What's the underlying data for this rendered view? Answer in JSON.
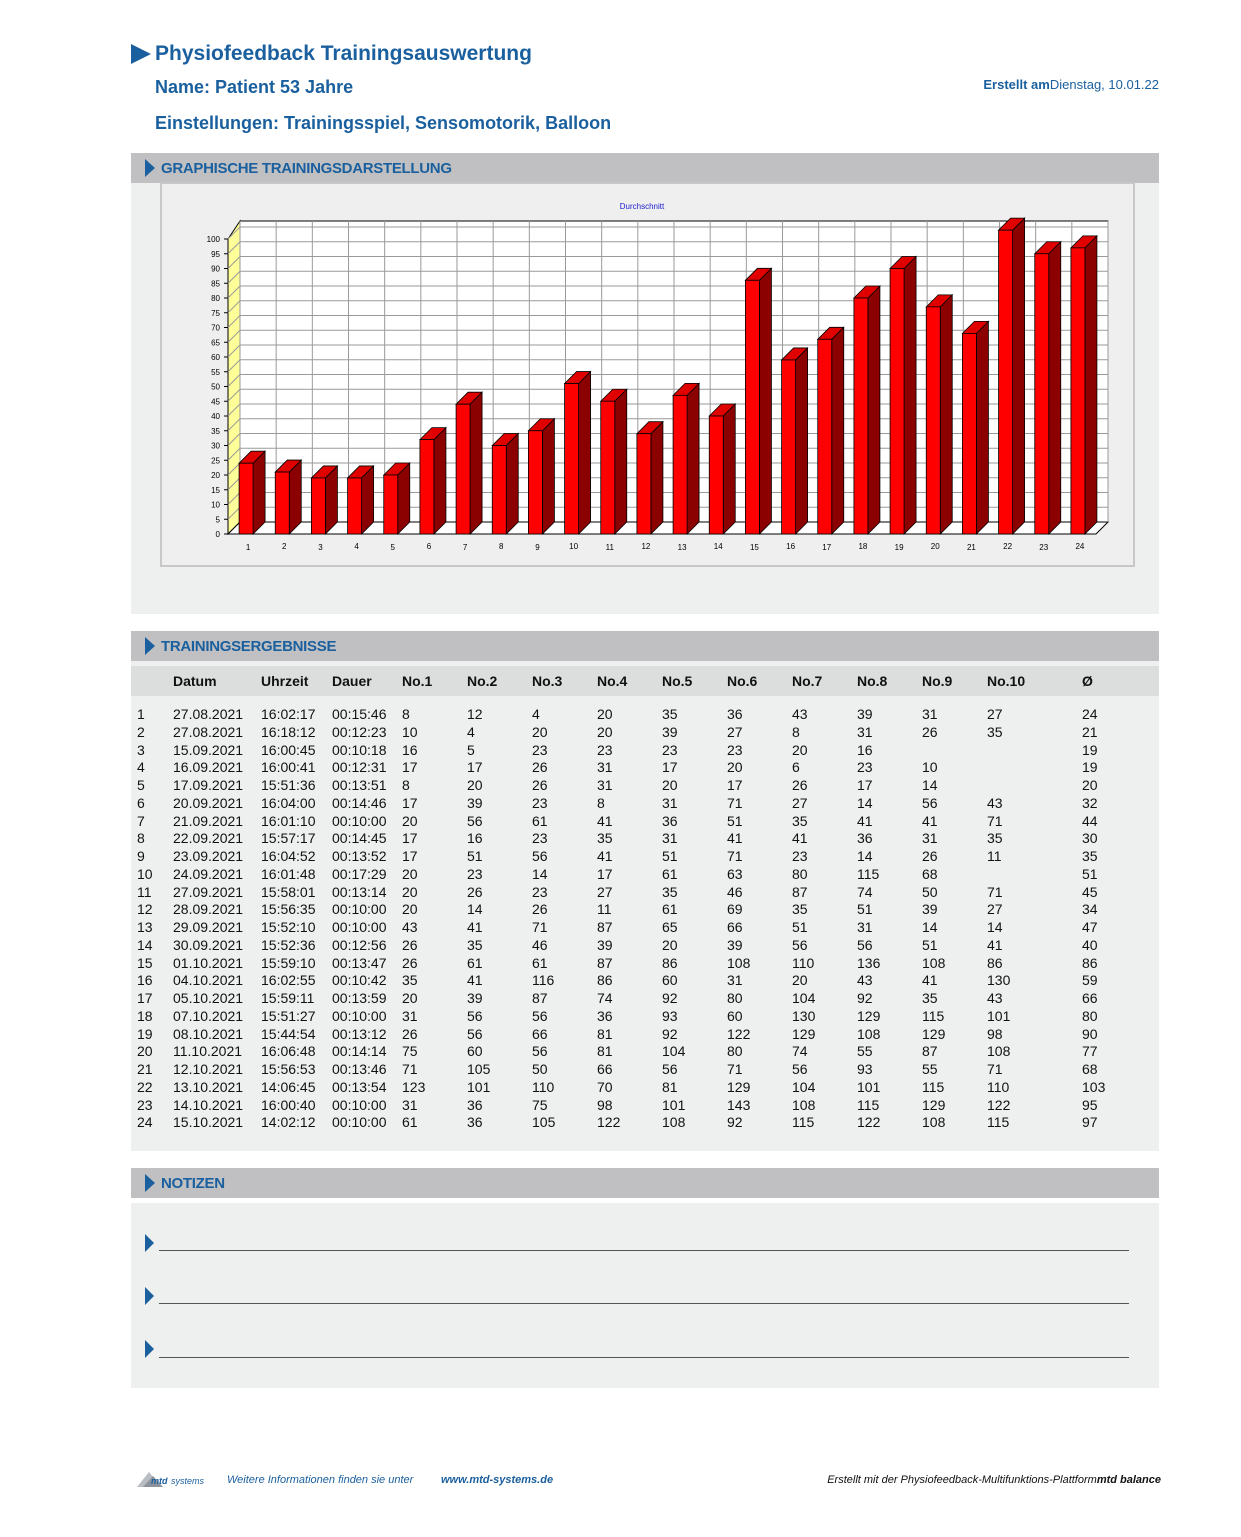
{
  "header": {
    "title": "Physiofeedback Trainingsauswertung",
    "patient": "Name: Patient 53 Jahre",
    "settings": "Einstellungen: Trainingsspiel, Sensomotorik, Balloon",
    "created_label": "Erstellt am",
    "created_date": "Dienstag, 10.01.22"
  },
  "sections": {
    "chart": "GRAPHISCHE TRAININGSDARSTELLUNG",
    "results": "TRAININGSERGEBNISSE",
    "notes": "NOTIZEN"
  },
  "chart_data": {
    "type": "bar",
    "title": "Durchschnitt",
    "categories": [
      "1",
      "2",
      "3",
      "4",
      "5",
      "6",
      "7",
      "8",
      "9",
      "10",
      "11",
      "12",
      "13",
      "14",
      "15",
      "16",
      "17",
      "18",
      "19",
      "20",
      "21",
      "22",
      "23",
      "24"
    ],
    "values": [
      24,
      21,
      19,
      19,
      20,
      32,
      44,
      30,
      35,
      51,
      45,
      34,
      47,
      40,
      86,
      59,
      66,
      80,
      90,
      77,
      68,
      103,
      95,
      97
    ],
    "ylim": [
      0,
      100
    ],
    "yticks": [
      "0",
      "5",
      "10",
      "15",
      "20",
      "25",
      "30",
      "35",
      "40",
      "45",
      "50",
      "55",
      "60",
      "65",
      "70",
      "75",
      "80",
      "85",
      "90",
      "95",
      "100"
    ],
    "colors": {
      "bar_front": "#ff0000",
      "bar_side": "#8b0000",
      "bar_top": "#e00000",
      "wall": "#ffff99"
    }
  },
  "table": {
    "columns": [
      "Datum",
      "Uhrzeit",
      "Dauer",
      "No.1",
      "No.2",
      "No.3",
      "No.4",
      "No.5",
      "No.6",
      "No.7",
      "No.8",
      "No.9",
      "No.10",
      "Ø"
    ],
    "rows": [
      [
        "1",
        "27.08.2021",
        "16:02:17",
        "00:15:46",
        "8",
        "12",
        "4",
        "20",
        "35",
        "36",
        "43",
        "39",
        "31",
        "27",
        "24"
      ],
      [
        "2",
        "27.08.2021",
        "16:18:12",
        "00:12:23",
        "10",
        "4",
        "20",
        "20",
        "39",
        "27",
        "8",
        "31",
        "26",
        "35",
        "21"
      ],
      [
        "3",
        "15.09.2021",
        "16:00:45",
        "00:10:18",
        "16",
        "5",
        "23",
        "23",
        "23",
        "23",
        "20",
        "16",
        "",
        "",
        "19"
      ],
      [
        "4",
        "16.09.2021",
        "16:00:41",
        "00:12:31",
        "17",
        "17",
        "26",
        "31",
        "17",
        "20",
        "6",
        "23",
        "10",
        "",
        "19"
      ],
      [
        "5",
        "17.09.2021",
        "15:51:36",
        "00:13:51",
        "8",
        "20",
        "26",
        "31",
        "20",
        "17",
        "26",
        "17",
        "14",
        "",
        "20"
      ],
      [
        "6",
        "20.09.2021",
        "16:04:00",
        "00:14:46",
        "17",
        "39",
        "23",
        "8",
        "31",
        "71",
        "27",
        "14",
        "56",
        "43",
        "32"
      ],
      [
        "7",
        "21.09.2021",
        "16:01:10",
        "00:10:00",
        "20",
        "56",
        "61",
        "41",
        "36",
        "51",
        "35",
        "41",
        "41",
        "71",
        "44"
      ],
      [
        "8",
        "22.09.2021",
        "15:57:17",
        "00:14:45",
        "17",
        "16",
        "23",
        "35",
        "31",
        "41",
        "41",
        "36",
        "31",
        "35",
        "30"
      ],
      [
        "9",
        "23.09.2021",
        "16:04:52",
        "00:13:52",
        "17",
        "51",
        "56",
        "41",
        "51",
        "71",
        "23",
        "14",
        "26",
        "11",
        "35"
      ],
      [
        "10",
        "24.09.2021",
        "16:01:48",
        "00:17:29",
        "20",
        "23",
        "14",
        "17",
        "61",
        "63",
        "80",
        "115",
        "68",
        "",
        "51"
      ],
      [
        "11",
        "27.09.2021",
        "15:58:01",
        "00:13:14",
        "20",
        "26",
        "23",
        "27",
        "35",
        "46",
        "87",
        "74",
        "50",
        "71",
        "45"
      ],
      [
        "12",
        "28.09.2021",
        "15:56:35",
        "00:10:00",
        "20",
        "14",
        "26",
        "11",
        "61",
        "69",
        "35",
        "51",
        "39",
        "27",
        "34"
      ],
      [
        "13",
        "29.09.2021",
        "15:52:10",
        "00:10:00",
        "43",
        "41",
        "71",
        "87",
        "65",
        "66",
        "51",
        "31",
        "14",
        "14",
        "47"
      ],
      [
        "14",
        "30.09.2021",
        "15:52:36",
        "00:12:56",
        "26",
        "35",
        "46",
        "39",
        "20",
        "39",
        "56",
        "56",
        "51",
        "41",
        "40"
      ],
      [
        "15",
        "01.10.2021",
        "15:59:10",
        "00:13:47",
        "26",
        "61",
        "61",
        "87",
        "86",
        "108",
        "110",
        "136",
        "108",
        "86",
        "86"
      ],
      [
        "16",
        "04.10.2021",
        "16:02:55",
        "00:10:42",
        "35",
        "41",
        "116",
        "86",
        "60",
        "31",
        "20",
        "43",
        "41",
        "130",
        "59"
      ],
      [
        "17",
        "05.10.2021",
        "15:59:11",
        "00:13:59",
        "20",
        "39",
        "87",
        "74",
        "92",
        "80",
        "104",
        "92",
        "35",
        "43",
        "66"
      ],
      [
        "18",
        "07.10.2021",
        "15:51:27",
        "00:10:00",
        "31",
        "56",
        "56",
        "36",
        "93",
        "60",
        "130",
        "129",
        "115",
        "101",
        "80"
      ],
      [
        "19",
        "08.10.2021",
        "15:44:54",
        "00:13:12",
        "26",
        "56",
        "66",
        "81",
        "92",
        "122",
        "129",
        "108",
        "129",
        "98",
        "90"
      ],
      [
        "20",
        "11.10.2021",
        "16:06:48",
        "00:14:14",
        "75",
        "60",
        "56",
        "81",
        "104",
        "80",
        "74",
        "55",
        "87",
        "108",
        "77"
      ],
      [
        "21",
        "12.10.2021",
        "15:56:53",
        "00:13:46",
        "71",
        "105",
        "50",
        "66",
        "56",
        "71",
        "56",
        "93",
        "55",
        "71",
        "68"
      ],
      [
        "22",
        "13.10.2021",
        "14:06:45",
        "00:13:54",
        "123",
        "101",
        "110",
        "70",
        "81",
        "129",
        "104",
        "101",
        "115",
        "110",
        "103"
      ],
      [
        "23",
        "14.10.2021",
        "16:00:40",
        "00:10:00",
        "31",
        "36",
        "75",
        "98",
        "101",
        "143",
        "108",
        "115",
        "129",
        "122",
        "95"
      ],
      [
        "24",
        "15.10.2021",
        "14:02:12",
        "00:10:00",
        "61",
        "36",
        "105",
        "122",
        "108",
        "92",
        "115",
        "122",
        "108",
        "115",
        "97"
      ]
    ]
  },
  "footer": {
    "logo_text": "mtd systems",
    "info": "Weitere Informationen finden sie unter",
    "url": "www.mtd-systems.de",
    "created_with": "Erstellt mit der Physiofeedback-Multifunktions-Plattform",
    "product": "mtd balance"
  }
}
